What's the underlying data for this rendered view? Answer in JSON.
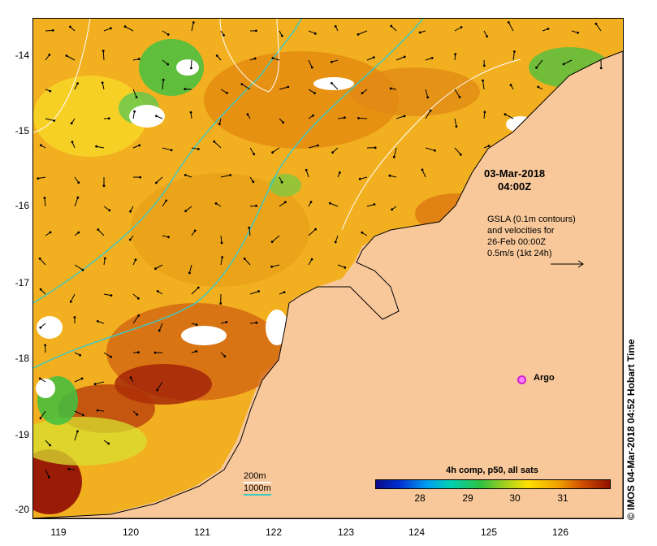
{
  "axes": {
    "y_ticks": [
      "-14",
      "-15",
      "-16",
      "-17",
      "-18",
      "-19",
      "-20"
    ],
    "x_ticks": [
      "119",
      "120",
      "121",
      "122",
      "123",
      "124",
      "125",
      "126"
    ]
  },
  "annotations": {
    "timestamp_line1": "03-Mar-2018",
    "timestamp_line2": "04:00Z",
    "gsla_line1": "GSLA (0.1m contours)",
    "gsla_line2": "and velocities for",
    "gsla_line3": "26-Feb 00:00Z",
    "gsla_line4": "0.5m/s (1kt 24h)",
    "argo_label": "Argo",
    "credit": "IMOS 04-Mar-2018 04:52 Hobart Time",
    "credit_symbol": "©"
  },
  "depth_legend": {
    "line1_label": "200m",
    "line1_color": "#ffffff",
    "line2_label": "1000m",
    "line2_color": "#40c8c0"
  },
  "colorbar": {
    "title": "4h comp, p50, all sats",
    "ticks": [
      "28",
      "29",
      "30",
      "31"
    ]
  },
  "colors": {
    "land": "#f8c89a",
    "sst_warm": "#f0a000",
    "sst_hot": "#a01000",
    "sst_cool": "#40c040",
    "cloud": "#ffffff"
  }
}
